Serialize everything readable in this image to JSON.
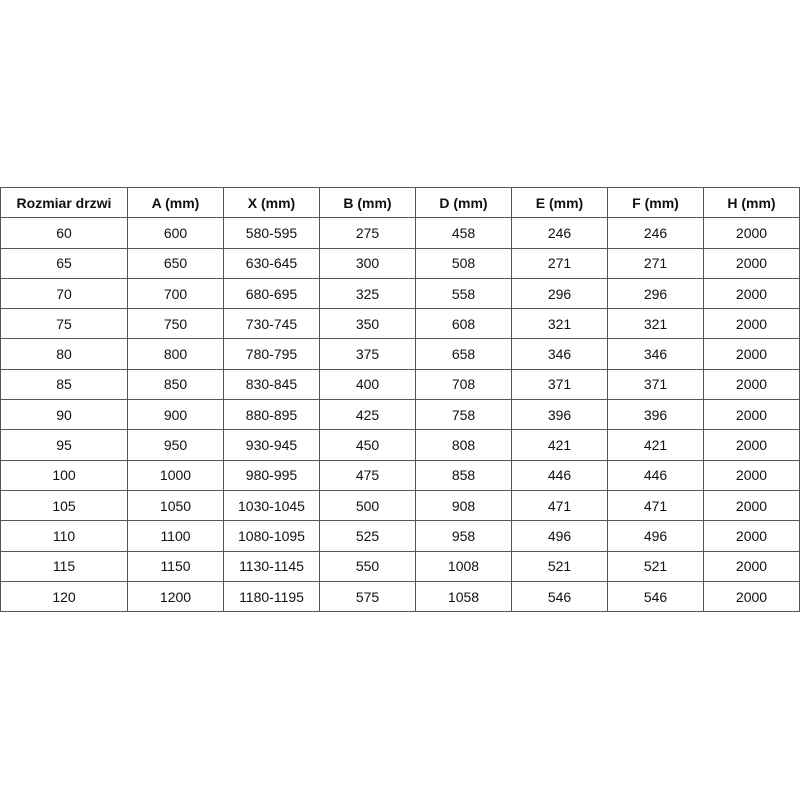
{
  "table": {
    "headers": [
      "Rozmiar drzwi",
      "A (mm)",
      "X (mm)",
      "B (mm)",
      "D (mm)",
      "E (mm)",
      "F (mm)",
      "H (mm)"
    ],
    "rows": [
      [
        "60",
        "600",
        "580-595",
        "275",
        "458",
        "246",
        "246",
        "2000"
      ],
      [
        "65",
        "650",
        "630-645",
        "300",
        "508",
        "271",
        "271",
        "2000"
      ],
      [
        "70",
        "700",
        "680-695",
        "325",
        "558",
        "296",
        "296",
        "2000"
      ],
      [
        "75",
        "750",
        "730-745",
        "350",
        "608",
        "321",
        "321",
        "2000"
      ],
      [
        "80",
        "800",
        "780-795",
        "375",
        "658",
        "346",
        "346",
        "2000"
      ],
      [
        "85",
        "850",
        "830-845",
        "400",
        "708",
        "371",
        "371",
        "2000"
      ],
      [
        "90",
        "900",
        "880-895",
        "425",
        "758",
        "396",
        "396",
        "2000"
      ],
      [
        "95",
        "950",
        "930-945",
        "450",
        "808",
        "421",
        "421",
        "2000"
      ],
      [
        "100",
        "1000",
        "980-995",
        "475",
        "858",
        "446",
        "446",
        "2000"
      ],
      [
        "105",
        "1050",
        "1030-1045",
        "500",
        "908",
        "471",
        "471",
        "2000"
      ],
      [
        "110",
        "1100",
        "1080-1095",
        "525",
        "958",
        "496",
        "496",
        "2000"
      ],
      [
        "115",
        "1150",
        "1130-1145",
        "550",
        "1008",
        "521",
        "521",
        "2000"
      ],
      [
        "120",
        "1200",
        "1180-1195",
        "575",
        "1058",
        "546",
        "546",
        "2000"
      ]
    ]
  }
}
